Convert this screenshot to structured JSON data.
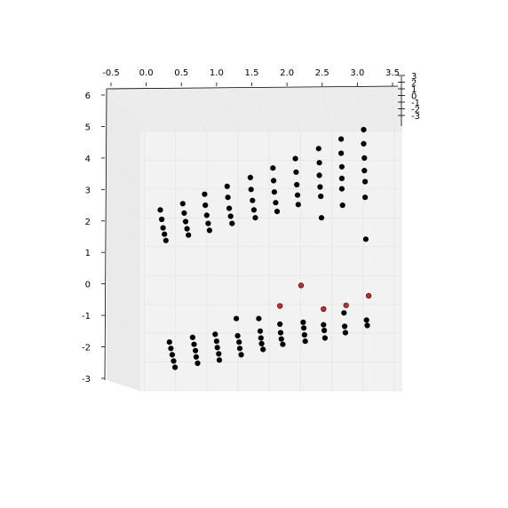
{
  "chart_data": {
    "type": "scatter",
    "projection": "3d",
    "grid": true,
    "colors": {
      "black_points": "#000000",
      "red_points": "#d62728",
      "pane": "#f2f2f2",
      "grid": "#e6e6e6"
    },
    "x_ticks": [
      "-0.5",
      "0.0",
      "0.5",
      "1.0",
      "1.5",
      "2.0",
      "2.5",
      "3.0",
      "3.5"
    ],
    "y_ticks": [
      "6",
      "5",
      "4",
      "3",
      "2",
      "1",
      "0",
      "-1",
      "-2",
      "-3"
    ],
    "z_ticks": [
      "3",
      "2",
      "1",
      "0",
      "-1",
      "-2",
      "-3"
    ],
    "xlim": [
      -0.5,
      3.5
    ],
    "ylim": [
      -3,
      6
    ],
    "series": [
      {
        "color": "#000000",
        "points": [
          {
            "x": 0.2,
            "y": 2.35
          },
          {
            "x": 0.22,
            "y": 2.05
          },
          {
            "x": 0.24,
            "y": 1.78
          },
          {
            "x": 0.26,
            "y": 1.58
          },
          {
            "x": 0.28,
            "y": 1.38
          },
          {
            "x": 0.52,
            "y": 2.55
          },
          {
            "x": 0.54,
            "y": 2.25
          },
          {
            "x": 0.56,
            "y": 1.98
          },
          {
            "x": 0.58,
            "y": 1.75
          },
          {
            "x": 0.6,
            "y": 1.55
          },
          {
            "x": 0.83,
            "y": 2.85
          },
          {
            "x": 0.84,
            "y": 2.5
          },
          {
            "x": 0.86,
            "y": 2.18
          },
          {
            "x": 0.88,
            "y": 1.92
          },
          {
            "x": 0.9,
            "y": 1.7
          },
          {
            "x": 1.15,
            "y": 3.1
          },
          {
            "x": 1.16,
            "y": 2.75
          },
          {
            "x": 1.18,
            "y": 2.4
          },
          {
            "x": 1.2,
            "y": 2.15
          },
          {
            "x": 1.22,
            "y": 1.92
          },
          {
            "x": 1.48,
            "y": 3.38
          },
          {
            "x": 1.49,
            "y": 3.0
          },
          {
            "x": 1.51,
            "y": 2.65
          },
          {
            "x": 1.53,
            "y": 2.35
          },
          {
            "x": 1.55,
            "y": 2.1
          },
          {
            "x": 1.8,
            "y": 3.68
          },
          {
            "x": 1.81,
            "y": 3.28
          },
          {
            "x": 1.82,
            "y": 2.92
          },
          {
            "x": 1.84,
            "y": 2.58
          },
          {
            "x": 1.86,
            "y": 2.3
          },
          {
            "x": 2.12,
            "y": 3.98
          },
          {
            "x": 2.13,
            "y": 3.55
          },
          {
            "x": 2.14,
            "y": 3.15
          },
          {
            "x": 2.15,
            "y": 2.82
          },
          {
            "x": 2.16,
            "y": 2.52
          },
          {
            "x": 2.45,
            "y": 4.3
          },
          {
            "x": 2.46,
            "y": 3.85
          },
          {
            "x": 2.46,
            "y": 3.45
          },
          {
            "x": 2.47,
            "y": 3.08
          },
          {
            "x": 2.48,
            "y": 2.78
          },
          {
            "x": 2.49,
            "y": 2.1
          },
          {
            "x": 2.77,
            "y": 4.6
          },
          {
            "x": 2.77,
            "y": 4.15
          },
          {
            "x": 2.78,
            "y": 3.72
          },
          {
            "x": 2.78,
            "y": 3.35
          },
          {
            "x": 2.78,
            "y": 3.02
          },
          {
            "x": 2.79,
            "y": 2.5
          },
          {
            "x": 3.09,
            "y": 4.9
          },
          {
            "x": 3.09,
            "y": 4.45
          },
          {
            "x": 3.1,
            "y": 4.0
          },
          {
            "x": 3.1,
            "y": 3.6
          },
          {
            "x": 3.11,
            "y": 3.25
          },
          {
            "x": 3.11,
            "y": 2.75
          },
          {
            "x": 3.12,
            "y": 1.42
          },
          {
            "x": 0.33,
            "y": -1.85
          },
          {
            "x": 0.35,
            "y": -2.05
          },
          {
            "x": 0.37,
            "y": -2.25
          },
          {
            "x": 0.39,
            "y": -2.45
          },
          {
            "x": 0.41,
            "y": -2.65
          },
          {
            "x": 0.66,
            "y": -1.7
          },
          {
            "x": 0.68,
            "y": -1.92
          },
          {
            "x": 0.7,
            "y": -2.12
          },
          {
            "x": 0.71,
            "y": -2.32
          },
          {
            "x": 0.73,
            "y": -2.52
          },
          {
            "x": 0.98,
            "y": -1.6
          },
          {
            "x": 1.0,
            "y": -1.82
          },
          {
            "x": 1.01,
            "y": -2.02
          },
          {
            "x": 1.03,
            "y": -2.22
          },
          {
            "x": 1.04,
            "y": -2.42
          },
          {
            "x": 1.28,
            "y": -1.1
          },
          {
            "x": 1.3,
            "y": -1.65
          },
          {
            "x": 1.32,
            "y": -1.85
          },
          {
            "x": 1.33,
            "y": -2.05
          },
          {
            "x": 1.35,
            "y": -2.25
          },
          {
            "x": 1.6,
            "y": -1.1
          },
          {
            "x": 1.62,
            "y": -1.5
          },
          {
            "x": 1.63,
            "y": -1.72
          },
          {
            "x": 1.64,
            "y": -1.9
          },
          {
            "x": 1.66,
            "y": -2.08
          },
          {
            "x": 1.9,
            "y": -1.28
          },
          {
            "x": 1.91,
            "y": -1.55
          },
          {
            "x": 1.92,
            "y": -1.75
          },
          {
            "x": 1.94,
            "y": -1.92
          },
          {
            "x": 2.23,
            "y": -1.22
          },
          {
            "x": 2.24,
            "y": -1.4
          },
          {
            "x": 2.25,
            "y": -1.62
          },
          {
            "x": 2.26,
            "y": -1.82
          },
          {
            "x": 2.52,
            "y": -1.3
          },
          {
            "x": 2.53,
            "y": -1.48
          },
          {
            "x": 2.54,
            "y": -1.72
          },
          {
            "x": 2.81,
            "y": -0.92
          },
          {
            "x": 2.82,
            "y": -1.35
          },
          {
            "x": 2.83,
            "y": -1.55
          },
          {
            "x": 3.13,
            "y": -1.15
          },
          {
            "x": 3.14,
            "y": -1.32
          }
        ]
      },
      {
        "color": "#d62728",
        "points": [
          {
            "x": 1.9,
            "y": -0.7
          },
          {
            "x": 2.2,
            "y": -0.05
          },
          {
            "x": 2.52,
            "y": -0.8
          },
          {
            "x": 2.84,
            "y": -0.68
          },
          {
            "x": 3.16,
            "y": -0.38
          }
        ]
      }
    ]
  }
}
